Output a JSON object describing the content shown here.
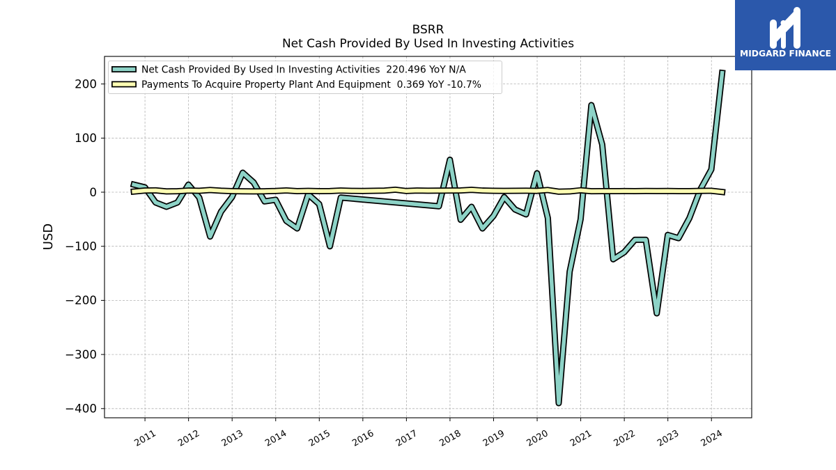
{
  "logo": {
    "text": "MIDGARD FINANCE",
    "background": "#2b58ab",
    "foreground": "#ffffff"
  },
  "chart_data": {
    "type": "line",
    "title": "BSRR",
    "subtitle": "Net Cash Provided By Used In Investing Activities",
    "ylabel": "USD",
    "xlim": [
      "2010-01-27",
      "2024-12-04"
    ],
    "ylim": [
      -417,
      251
    ],
    "xticks": [
      "2011",
      "2012",
      "2013",
      "2014",
      "2015",
      "2016",
      "2017",
      "2018",
      "2019",
      "2020",
      "2021",
      "2022",
      "2023",
      "2024"
    ],
    "yticks": [
      {
        "value": 200,
        "label": "200"
      },
      {
        "value": 100,
        "label": "100"
      },
      {
        "value": 0,
        "label": "0"
      },
      {
        "value": -100,
        "label": "−100"
      },
      {
        "value": -200,
        "label": "−200"
      },
      {
        "value": -300,
        "label": "−300"
      },
      {
        "value": -400,
        "label": "−400"
      }
    ],
    "grid": true,
    "legend_position": "upper-left",
    "series": [
      {
        "name": "Net Cash Provided By Used In Investing Activities  220.496 YoY N/A",
        "color": "#8dd3c7",
        "points": [
          [
            "2010-09-30",
            14
          ],
          [
            "2010-12-31",
            9
          ],
          [
            "2011-03-31",
            -19
          ],
          [
            "2011-06-30",
            -27
          ],
          [
            "2011-09-30",
            -19
          ],
          [
            "2011-12-31",
            14
          ],
          [
            "2012-03-31",
            -10
          ],
          [
            "2012-06-30",
            -82
          ],
          [
            "2012-09-30",
            -36
          ],
          [
            "2012-12-31",
            -9
          ],
          [
            "2013-03-31",
            36
          ],
          [
            "2013-06-30",
            18
          ],
          [
            "2013-09-30",
            -17
          ],
          [
            "2013-12-31",
            -14
          ],
          [
            "2014-03-31",
            -53
          ],
          [
            "2014-06-30",
            -67
          ],
          [
            "2014-09-30",
            -4
          ],
          [
            "2014-12-31",
            -22
          ],
          [
            "2015-03-31",
            -100
          ],
          [
            "2015-06-30",
            -10
          ],
          [
            "2017-09-30",
            -26
          ],
          [
            "2017-12-31",
            60
          ],
          [
            "2018-03-31",
            -51
          ],
          [
            "2018-06-30",
            -27
          ],
          [
            "2018-09-30",
            -67
          ],
          [
            "2018-12-31",
            -44
          ],
          [
            "2019-03-31",
            -9
          ],
          [
            "2019-06-30",
            -32
          ],
          [
            "2019-09-30",
            -41
          ],
          [
            "2019-12-31",
            35
          ],
          [
            "2020-03-31",
            -48
          ],
          [
            "2020-06-30",
            -390
          ],
          [
            "2020-09-30",
            -147
          ],
          [
            "2020-12-31",
            -50
          ],
          [
            "2021-03-31",
            161
          ],
          [
            "2021-06-30",
            88
          ],
          [
            "2021-09-30",
            -124
          ],
          [
            "2021-12-31",
            -111
          ],
          [
            "2022-03-31",
            -88
          ],
          [
            "2022-06-30",
            -88
          ],
          [
            "2022-09-30",
            -224
          ],
          [
            "2022-12-31",
            -79
          ],
          [
            "2023-03-31",
            -85
          ],
          [
            "2023-06-30",
            -48
          ],
          [
            "2023-09-30",
            5
          ],
          [
            "2023-12-31",
            42
          ],
          [
            "2024-03-31",
            220.496
          ]
        ]
      },
      {
        "name": "Payments To Acquire Property Plant And Equipment  0.369 YoY -10.7%",
        "color": "#ffffb3",
        "points": [
          [
            "2010-09-30",
            1.2
          ],
          [
            "2010-12-31",
            3.1
          ],
          [
            "2011-03-31",
            3.4
          ],
          [
            "2011-06-30",
            1.5
          ],
          [
            "2011-09-30",
            1.8
          ],
          [
            "2011-12-31",
            3.0
          ],
          [
            "2012-03-31",
            2.6
          ],
          [
            "2012-06-30",
            4.1
          ],
          [
            "2012-09-30",
            2.8
          ],
          [
            "2012-12-31",
            2.0
          ],
          [
            "2013-03-31",
            1.6
          ],
          [
            "2013-06-30",
            1.4
          ],
          [
            "2013-09-30",
            1.7
          ],
          [
            "2013-12-31",
            2.2
          ],
          [
            "2014-03-31",
            3.3
          ],
          [
            "2014-06-30",
            2.0
          ],
          [
            "2014-09-30",
            2.4
          ],
          [
            "2014-12-31",
            1.9
          ],
          [
            "2015-03-31",
            2.1
          ],
          [
            "2015-06-30",
            3.0
          ],
          [
            "2015-09-30",
            2.5
          ],
          [
            "2015-12-31",
            2.3
          ],
          [
            "2016-03-31",
            2.6
          ],
          [
            "2016-06-30",
            2.9
          ],
          [
            "2016-09-30",
            4.6
          ],
          [
            "2016-12-31",
            2.2
          ],
          [
            "2017-03-31",
            3.1
          ],
          [
            "2017-06-30",
            2.7
          ],
          [
            "2017-09-30",
            2.9
          ],
          [
            "2017-12-31",
            3.0
          ],
          [
            "2018-03-31",
            3.2
          ],
          [
            "2018-06-30",
            4.3
          ],
          [
            "2018-09-30",
            3.0
          ],
          [
            "2018-12-31",
            2.6
          ],
          [
            "2019-03-31",
            2.4
          ],
          [
            "2019-06-30",
            2.6
          ],
          [
            "2019-09-30",
            2.7
          ],
          [
            "2019-12-31",
            2.5
          ],
          [
            "2020-03-31",
            4.0
          ],
          [
            "2020-06-30",
            1.0
          ],
          [
            "2020-09-30",
            1.4
          ],
          [
            "2020-12-31",
            3.5
          ],
          [
            "2021-03-31",
            1.8
          ],
          [
            "2021-06-30",
            2.0
          ],
          [
            "2021-09-30",
            1.9
          ],
          [
            "2021-12-31",
            2.1
          ],
          [
            "2022-03-31",
            2.0
          ],
          [
            "2022-06-30",
            2.2
          ],
          [
            "2022-09-30",
            2.1
          ],
          [
            "2022-12-31",
            2.3
          ],
          [
            "2023-03-31",
            2.0
          ],
          [
            "2023-06-30",
            1.9
          ],
          [
            "2023-09-30",
            2.4
          ],
          [
            "2023-12-31",
            2.6
          ],
          [
            "2024-03-31",
            0.369
          ]
        ]
      }
    ]
  }
}
